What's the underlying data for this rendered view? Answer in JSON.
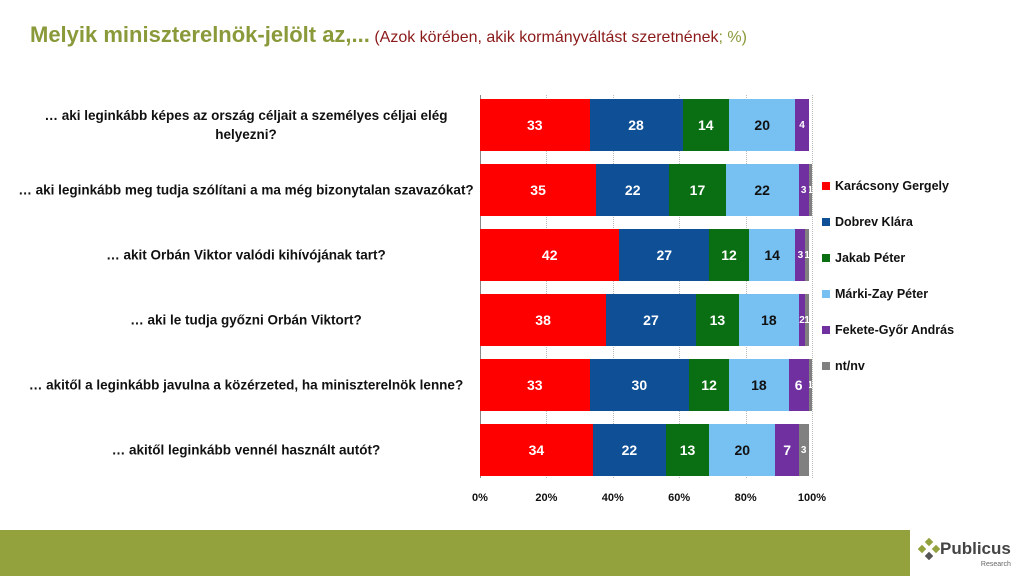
{
  "header": {
    "title": "Melyik miniszterelnök-jelölt az,...",
    "subtitle": "(Azok körében, akik kormányváltást szeretnének",
    "subtitle_end": "; %)"
  },
  "chart_data": {
    "type": "bar",
    "orientation": "horizontal",
    "stacked": true,
    "categories": [
      "… aki leginkább képes az ország céljait a személyes céljai elég helyezni?",
      "… aki leginkább meg tudja szólítani a ma még bizonytalan szavazókat?",
      "… akit Orbán Viktor valódi kihívójának tart?",
      "… aki le tudja győzni Orbán Viktort?",
      "… akitől a leginkább javulna a közérzeted, ha miniszterelnök lenne?",
      "… akitől leginkább vennél használt autót?"
    ],
    "series": [
      {
        "name": "Karácsony Gergely",
        "color": "#ff0000",
        "values": [
          33,
          35,
          42,
          38,
          33,
          34
        ]
      },
      {
        "name": "Dobrev Klára",
        "color": "#0f4f96",
        "values": [
          28,
          22,
          27,
          27,
          30,
          22
        ]
      },
      {
        "name": "Jakab Péter",
        "color": "#0a6e12",
        "values": [
          14,
          17,
          12,
          13,
          12,
          13
        ]
      },
      {
        "name": "Márki-Zay Péter",
        "color": "#76c0f2",
        "values": [
          20,
          22,
          14,
          18,
          18,
          20
        ]
      },
      {
        "name": "Fekete-Győr András",
        "color": "#7030a0",
        "values": [
          4,
          3,
          3,
          2,
          6,
          7
        ]
      },
      {
        "name": "nt/nv",
        "color": "#808080",
        "values": [
          0,
          1,
          1,
          1,
          1,
          3
        ]
      }
    ],
    "xticks": [
      "0%",
      "20%",
      "40%",
      "60%",
      "80%",
      "100%"
    ],
    "xlim": [
      0,
      100
    ],
    "legend": "right",
    "grid": true
  },
  "footer": {
    "logo": "Publicus",
    "logo_sub": "Research"
  }
}
